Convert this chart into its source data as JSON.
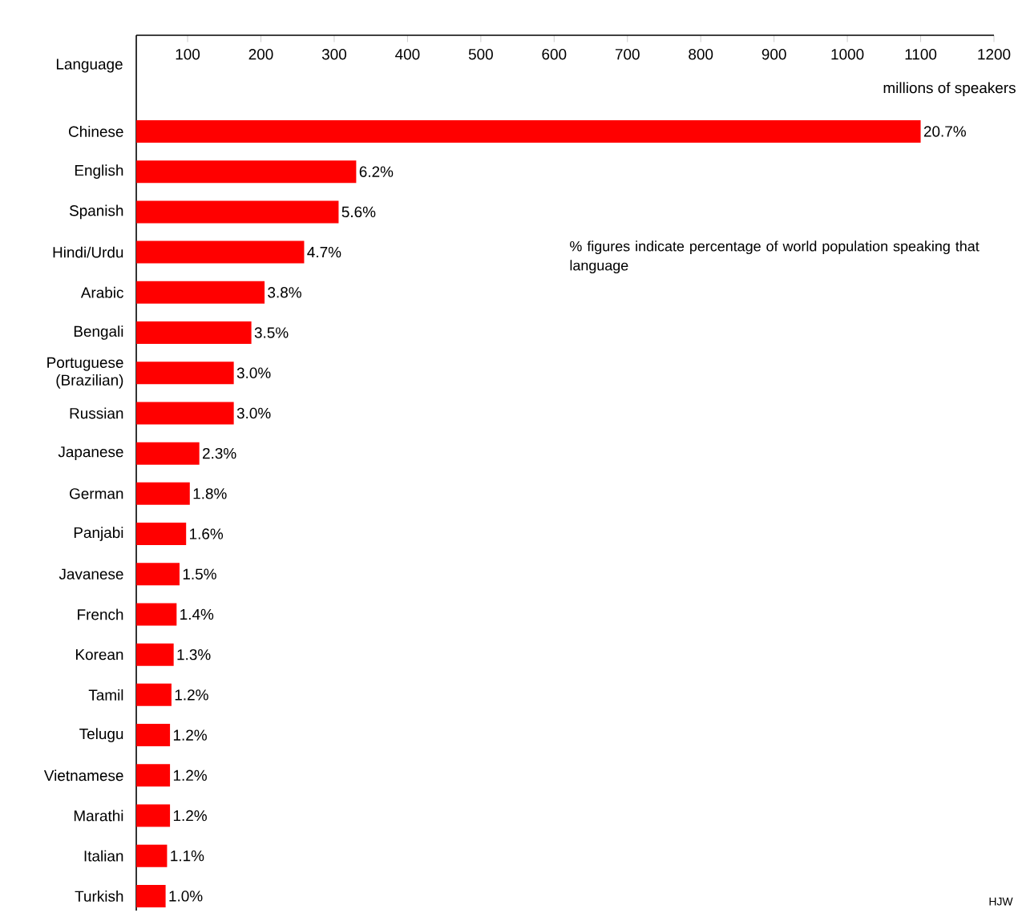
{
  "chart_data": {
    "type": "bar",
    "orientation": "horizontal",
    "xlabel": "millions of speakers",
    "ylabel": "Language",
    "categories": [
      "Chinese",
      "English",
      "Spanish",
      "Hindi/Urdu",
      "Arabic",
      "Bengali",
      "Portuguese (Brazilian)",
      "Russian",
      "Japanese",
      "German",
      "Panjabi",
      "Javanese",
      "French",
      "Korean",
      "Tamil",
      "Telugu",
      "Vietnamese",
      "Marathi",
      "Italian",
      "Turkish"
    ],
    "values": [
      1100,
      330,
      306,
      259,
      205,
      187,
      163,
      163,
      116,
      103,
      98,
      89,
      85,
      81,
      78,
      76,
      76,
      76,
      72,
      70
    ],
    "color": "#ff0000",
    "xlim": [
      30,
      1200
    ],
    "xticks": [
      100,
      200,
      300,
      400,
      500,
      600,
      700,
      800,
      900,
      1000,
      1100,
      1200
    ],
    "annotations": [
      "% figures indicate percentage of world population speaking that language",
      "HJW",
      {
        "text": "20.7%",
        "x": 1100,
        "y": "Chinese"
      },
      {
        "text": "6.2%",
        "x": 330,
        "y": "English"
      },
      {
        "text": "5.6%",
        "x": 306,
        "y": "Spanish"
      },
      {
        "text": "4.7%",
        "x": 259,
        "y": "Hindi/Urdu"
      },
      {
        "text": "3.8%",
        "x": 205,
        "y": "Arabic"
      },
      {
        "text": "3.5%",
        "x": 187,
        "y": "Bengali"
      },
      {
        "text": "3.0%",
        "x": 163,
        "y": "Portuguese (Brazilian)"
      },
      {
        "text": "3.0%",
        "x": 163,
        "y": "Russian"
      },
      {
        "text": "2.3%",
        "x": 116,
        "y": "Japanese"
      },
      {
        "text": "1.8%",
        "x": 103,
        "y": "German"
      },
      {
        "text": "1.6%",
        "x": 98,
        "y": "Panjabi"
      },
      {
        "text": "1.5%",
        "x": 89,
        "y": "Javanese"
      },
      {
        "text": "1.4%",
        "x": 85,
        "y": "French"
      },
      {
        "text": "1.3%",
        "x": 81,
        "y": "Korean"
      },
      {
        "text": "1.2%",
        "x": 78,
        "y": "Tamil"
      },
      {
        "text": "1.2%",
        "x": 76,
        "y": "Telugu"
      },
      {
        "text": "1.2%",
        "x": 76,
        "y": "Vietnamese"
      },
      {
        "text": "1.2%",
        "x": 76,
        "y": "Marathi"
      },
      {
        "text": "1.1%",
        "x": 72,
        "y": "Italian"
      },
      {
        "text": "1.0%",
        "x": 70,
        "y": "Turkish"
      }
    ]
  }
}
